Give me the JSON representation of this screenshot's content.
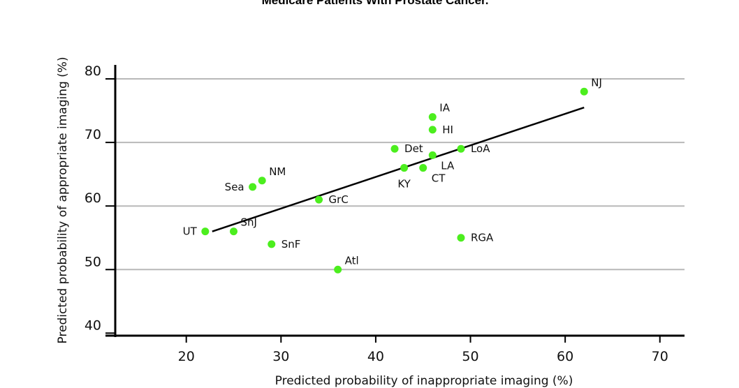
{
  "chart_data": {
    "type": "scatter",
    "title": "Medicare Patients With Prostate Cancer.",
    "xlabel": "Predicted probability of inappropriate imaging (%)",
    "ylabel": "Predicted probability of appropriate imaging (%)",
    "xlim": [
      12.5,
      72.6
    ],
    "ylim": [
      39.6,
      82.2
    ],
    "xticks": [
      20,
      30,
      40,
      50,
      60,
      70
    ],
    "yticks": [
      40,
      50,
      60,
      70,
      80
    ],
    "grid": "horizontal",
    "point_color": "#4cee1e",
    "points": [
      {
        "label": "UT",
        "x": 22,
        "y": 56,
        "label_pos": "left"
      },
      {
        "label": "SnJ",
        "x": 25,
        "y": 56,
        "label_pos": "above-right"
      },
      {
        "label": "SnF",
        "x": 29,
        "y": 54,
        "label_pos": "right"
      },
      {
        "label": "Sea",
        "x": 27,
        "y": 63,
        "label_pos": "left"
      },
      {
        "label": "NM",
        "x": 28,
        "y": 64,
        "label_pos": "above-right"
      },
      {
        "label": "GrC",
        "x": 34,
        "y": 61,
        "label_pos": "right"
      },
      {
        "label": "Atl",
        "x": 36,
        "y": 50,
        "label_pos": "above-right"
      },
      {
        "label": "Det",
        "x": 42,
        "y": 69,
        "label_pos": "right"
      },
      {
        "label": "KY",
        "x": 43,
        "y": 66,
        "label_pos": "below"
      },
      {
        "label": "CT",
        "x": 45,
        "y": 66,
        "label_pos": "below-right"
      },
      {
        "label": "LA",
        "x": 46,
        "y": 68,
        "label_pos": "below-right"
      },
      {
        "label": "HI",
        "x": 46,
        "y": 72,
        "label_pos": "right"
      },
      {
        "label": "IA",
        "x": 46,
        "y": 74,
        "label_pos": "above-right"
      },
      {
        "label": "LoA",
        "x": 49,
        "y": 69,
        "label_pos": "right"
      },
      {
        "label": "RGA",
        "x": 49,
        "y": 55,
        "label_pos": "right"
      },
      {
        "label": "NJ",
        "x": 62,
        "y": 78,
        "label_pos": "above-right"
      }
    ],
    "trendline": {
      "x": [
        22,
        62
      ],
      "y": [
        56,
        75.5
      ]
    }
  }
}
